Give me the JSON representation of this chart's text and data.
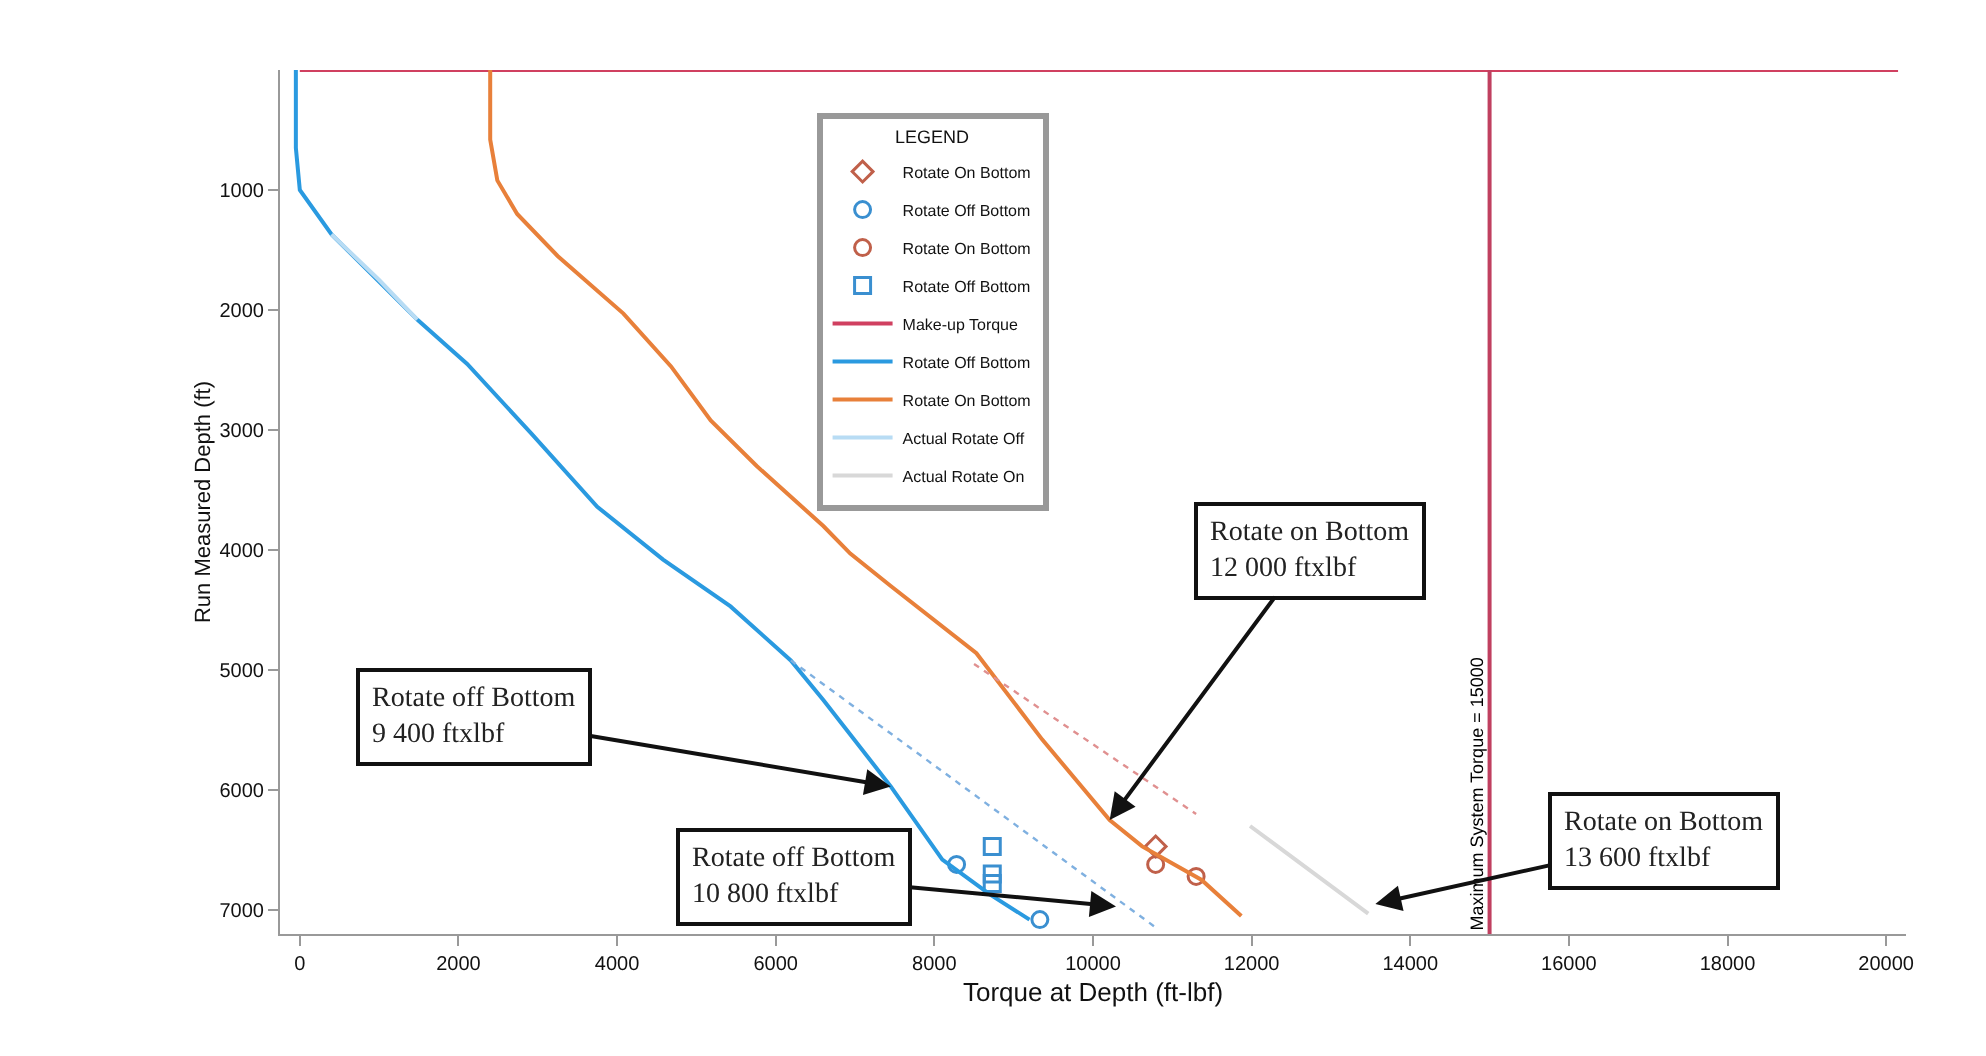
{
  "chart_data": {
    "type": "line",
    "xlabel": "Torque at Depth (ft-lbf)",
    "ylabel": "Run Measured Depth (ft)",
    "legend_title": "LEGEND",
    "legend": "top",
    "grid": false,
    "xlim": [
      -250,
      20250
    ],
    "xticks": [
      0,
      2000,
      4000,
      6000,
      8000,
      10000,
      12000,
      14000,
      16000,
      18000,
      20000
    ],
    "ylim": [
      7200,
      0
    ],
    "yticks": [
      1000,
      2000,
      3000,
      4000,
      5000,
      6000,
      7000
    ],
    "series": [
      {
        "type": "scatter",
        "name": "Rotate On Bottom",
        "color": "#c0604a",
        "marker": "diamond",
        "x": [
          10790
        ],
        "values": [
          6470
        ]
      },
      {
        "type": "scatter",
        "name": "Rotate Off Bottom",
        "color": "#3a8fd0",
        "marker": "circle",
        "x": [
          8280,
          9330
        ],
        "values": [
          6620,
          7080
        ]
      },
      {
        "type": "scatter",
        "name": "Rotate On Bottom",
        "color": "#c0604a",
        "marker": "circle",
        "x": [
          10790,
          11300
        ],
        "values": [
          6620,
          6720
        ]
      },
      {
        "type": "scatter",
        "name": "Rotate Off Bottom",
        "color": "#3a8fd0",
        "marker": "square",
        "x": [
          8730,
          8730,
          8730
        ],
        "values": [
          6470,
          6700,
          6780
        ]
      },
      {
        "name": "Make-up Torque",
        "color": "#d04060",
        "line_style": "solid",
        "x": [
          0,
          20150
        ],
        "values": [
          0,
          0
        ]
      },
      {
        "name": "Rotate Off Bottom",
        "color": "#2a9ae0",
        "line_style": "solid",
        "x": [
          -50,
          -50,
          0,
          400,
          1480,
          2110,
          2920,
          3750,
          4580,
          5430,
          6190,
          6600,
          7450,
          8100,
          8700,
          9200
        ],
        "values": [
          0,
          650,
          1000,
          1370,
          2080,
          2450,
          3030,
          3640,
          4080,
          4470,
          4920,
          5250,
          5970,
          6580,
          6870,
          7080
        ]
      },
      {
        "name": "Rotate On Bottom",
        "color": "#e8803a",
        "line_style": "solid",
        "x": [
          2400,
          2400,
          2490,
          2740,
          3250,
          4080,
          4680,
          5180,
          5760,
          6600,
          6940,
          7450,
          8530,
          9360,
          10210,
          10620,
          11370,
          11870
        ],
        "values": [
          0,
          580,
          920,
          1200,
          1550,
          2030,
          2470,
          2920,
          3300,
          3800,
          4030,
          4300,
          4860,
          5580,
          6250,
          6470,
          6750,
          7050
        ]
      },
      {
        "name": "Actual Rotate Off",
        "color": "#b8dcf4",
        "line_style": "solid",
        "x": [
          400,
          1000,
          1480
        ],
        "values": [
          1370,
          1750,
          2080
        ]
      },
      {
        "name": "Actual Rotate On",
        "color": "#d8d8d8",
        "line_style": "solid",
        "x": [
          11980,
          13470
        ],
        "values": [
          6300,
          7030
        ]
      },
      {
        "color": "#7fb0e0",
        "line_style": "dotted",
        "x": [
          6190,
          10800
        ],
        "values": [
          4920,
          7150
        ]
      },
      {
        "color": "#e09090",
        "line_style": "dotted",
        "x": [
          8500,
          11300
        ],
        "values": [
          4950,
          6200
        ]
      }
    ],
    "ref_lines": [
      {
        "axis": "x",
        "value": 15000,
        "label": "Maximum System Torque = 15000",
        "color": "#c04060"
      }
    ],
    "annotations": [
      {
        "text": "Rotate off Bottom 9 400 ftxlbf",
        "x": 7450,
        "y": 5970
      },
      {
        "text": "Rotate off Bottom 10 800 ftxlbf",
        "x": 10290,
        "y": 6970
      },
      {
        "text": "Rotate on Bottom 12 000 ftxlbf",
        "x": 10210,
        "y": 6250
      },
      {
        "text": "Rotate on Bottom 13 600 ftxlbf",
        "x": 13560,
        "y": 6950
      }
    ]
  }
}
